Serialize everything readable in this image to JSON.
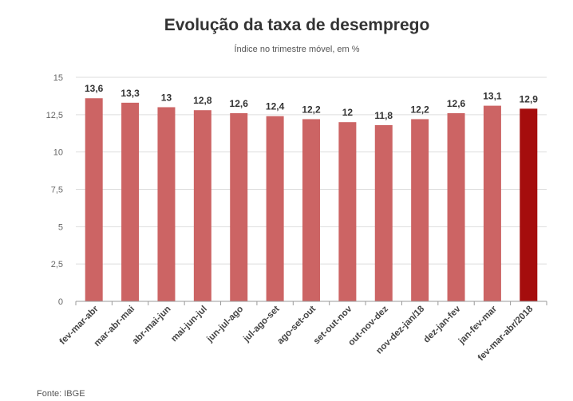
{
  "title": "Evolução da taxa de desemprego",
  "subtitle": "Índice no trimestre móvel, em %",
  "source": "Fonte: IBGE",
  "colors": {
    "bar": "#cc6464",
    "highlight": "#a50d0d",
    "grid": "#dddddd"
  },
  "chart_data": {
    "type": "bar",
    "categories": [
      "fev-mar-abr",
      "mar-abr-mai",
      "abr-mai-jun",
      "mai-jun-jul",
      "jun-jul-ago",
      "jul-ago-set",
      "ago-set-out",
      "set-out-nov",
      "out-nov-dez",
      "nov-dez-jan/18",
      "dez-jan-fev",
      "jan-fev-mar",
      "fev-mar-abr/2018"
    ],
    "values": [
      13.6,
      13.3,
      13,
      12.8,
      12.6,
      12.4,
      12.2,
      12,
      11.8,
      12.2,
      12.6,
      13.1,
      12.9
    ],
    "labels": [
      "13,6",
      "13,3",
      "13",
      "12,8",
      "12,6",
      "12,4",
      "12,2",
      "12",
      "11,8",
      "12,2",
      "12,6",
      "13,1",
      "12,9"
    ],
    "highlight_index": 12,
    "ylim": [
      0,
      15
    ],
    "yticks": [
      0,
      2.5,
      5,
      7.5,
      10,
      12.5,
      15
    ],
    "ytick_labels": [
      "0",
      "2,5",
      "5",
      "7,5",
      "10",
      "12,5",
      "15"
    ],
    "grid": true,
    "xlabel": "",
    "ylabel": ""
  }
}
